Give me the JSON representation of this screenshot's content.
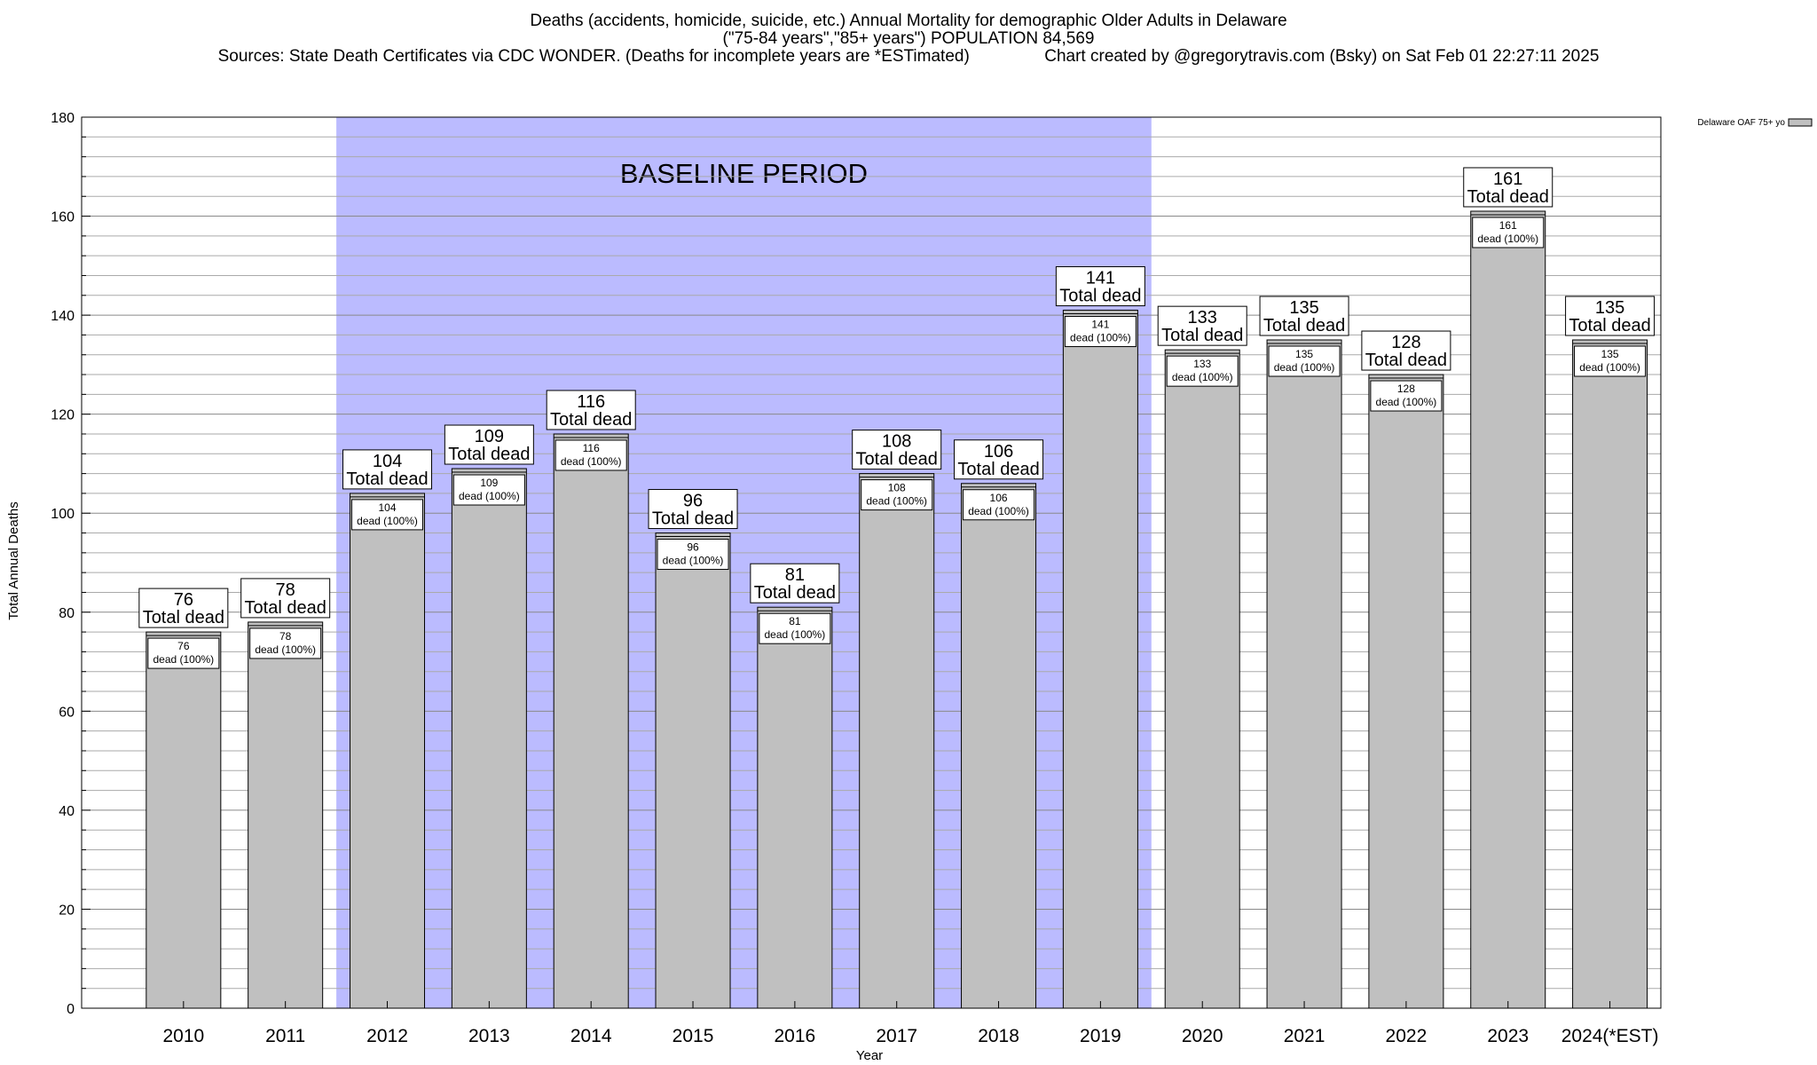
{
  "chart_data": {
    "type": "bar",
    "title_lines": [
      "Deaths (accidents, homicide, suicide, etc.) Annual Mortality for demographic Older Adults in Delaware",
      "(\"75-84 years\",\"85+ years\") POPULATION 84,569",
      "Sources: State Death Certificates via CDC WONDER. (Deaths for incomplete years are *ESTimated)                Chart created by @gregorytravis.com (Bsky) on Sat Feb 01 22:27:11 2025"
    ],
    "xlabel": "Year",
    "ylabel": "Total Annual Deaths",
    "ylim": [
      0,
      180
    ],
    "y_ticks": [
      0,
      20,
      40,
      60,
      80,
      100,
      120,
      140,
      160,
      180
    ],
    "categories": [
      "2010",
      "2011",
      "2012",
      "2013",
      "2014",
      "2015",
      "2016",
      "2017",
      "2018",
      "2019",
      "2020",
      "2021",
      "2022",
      "2023",
      "2024(*EST)"
    ],
    "series": [
      {
        "name": "Delaware OAF 75+ yo",
        "color": "#c0c0c0",
        "values": [
          76,
          78,
          104,
          109,
          116,
          96,
          81,
          108,
          106,
          141,
          133,
          135,
          128,
          161,
          135
        ]
      }
    ],
    "total_label_suffix": "Total dead",
    "inner_label_suffix": "dead (100%)",
    "baseline": {
      "label": "BASELINE PERIOD",
      "from": "2012",
      "to": "2019",
      "color": "#bbbbff"
    },
    "legend_position": "top-right",
    "grid": true
  }
}
